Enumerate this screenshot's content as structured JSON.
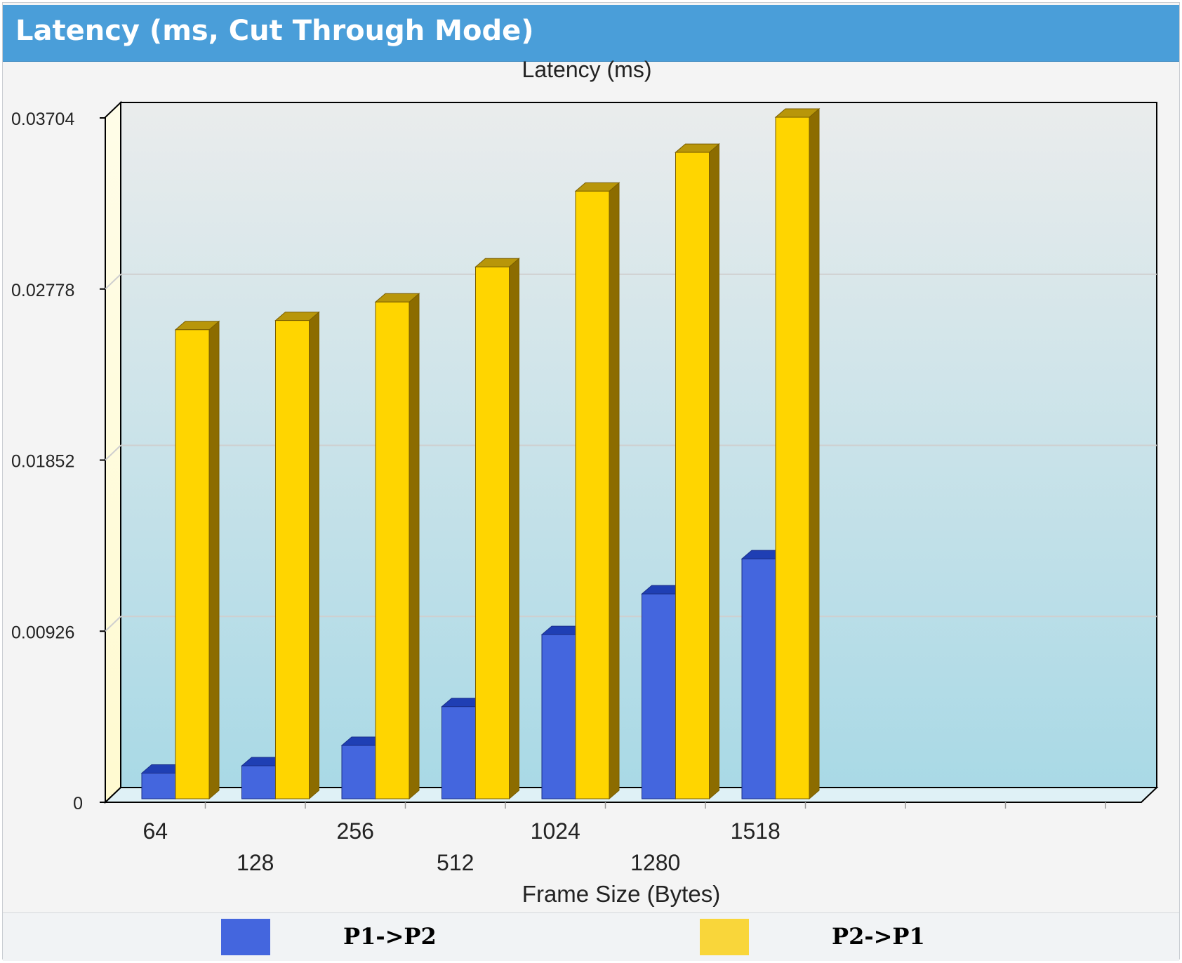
{
  "header": {
    "title": "Latency (ms, Cut Through Mode)"
  },
  "colors": {
    "p1_front": "#4466de",
    "p1_top": "#1f3fb4",
    "p1_side": "#2c48b8",
    "p2_front": "#ffd500",
    "p2_top": "#b8960a",
    "p2_side": "#8c6c00"
  },
  "chart_data": {
    "type": "bar",
    "title": "Latency (ms)",
    "xlabel": "Frame Size (Bytes)",
    "ylabel": "",
    "categories": [
      "64",
      "128",
      "256",
      "512",
      "1024",
      "1280",
      "1518"
    ],
    "ylim": [
      0,
      0.03704
    ],
    "yticks": [
      "0",
      "0.00926",
      "0.01852",
      "0.02778",
      "0.03704"
    ],
    "grid": true,
    "legend_position": "bottom",
    "series": [
      {
        "name": "P1->P2",
        "values": [
          0.0015,
          0.0019,
          0.003,
          0.0051,
          0.009,
          0.0112,
          0.0131
        ]
      },
      {
        "name": "P2->P1",
        "values": [
          0.0255,
          0.026,
          0.027,
          0.0289,
          0.033,
          0.0351,
          0.037
        ]
      }
    ]
  }
}
